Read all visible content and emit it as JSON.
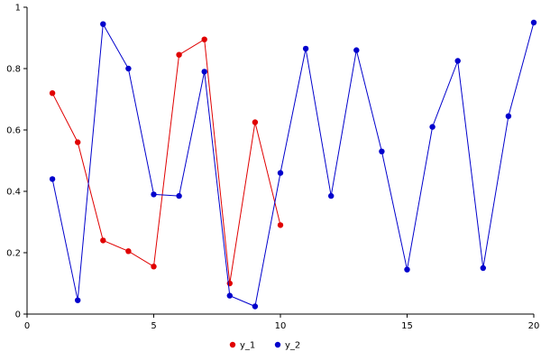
{
  "chart_data": {
    "type": "line",
    "title": "",
    "xlabel": "",
    "ylabel": "",
    "xlim": [
      0,
      20
    ],
    "ylim": [
      0,
      1
    ],
    "xticks": [
      0,
      5,
      10,
      15,
      20
    ],
    "xtick_labels": [
      "0",
      "5",
      "10",
      "15",
      "20"
    ],
    "yticks": [
      0,
      0.2,
      0.4,
      0.6,
      0.8,
      1
    ],
    "ytick_labels": [
      "0",
      "0.2",
      "0.4",
      "0.6",
      "0.8",
      "1"
    ],
    "grid": false,
    "legend_position": "bottom-center",
    "axis_color": "#000000",
    "background_color": "#ffffff",
    "series": [
      {
        "name": "y_1",
        "color": "#e00000",
        "marker": "filled-circle",
        "x": [
          1,
          2,
          3,
          4,
          5,
          6,
          7,
          8,
          9,
          10
        ],
        "y": [
          0.72,
          0.56,
          0.24,
          0.205,
          0.155,
          0.845,
          0.895,
          0.1,
          0.625,
          0.29
        ]
      },
      {
        "name": "y_2",
        "color": "#0000cc",
        "marker": "filled-circle",
        "x": [
          1,
          2,
          3,
          4,
          5,
          6,
          7,
          8,
          9,
          10,
          11,
          12,
          13,
          14,
          15,
          16,
          17,
          18,
          19,
          20
        ],
        "y": [
          0.44,
          0.045,
          0.945,
          0.8,
          0.39,
          0.385,
          0.79,
          0.06,
          0.025,
          0.46,
          0.865,
          0.385,
          0.86,
          0.53,
          0.145,
          0.61,
          0.825,
          0.15,
          0.645,
          0.95
        ]
      }
    ]
  }
}
